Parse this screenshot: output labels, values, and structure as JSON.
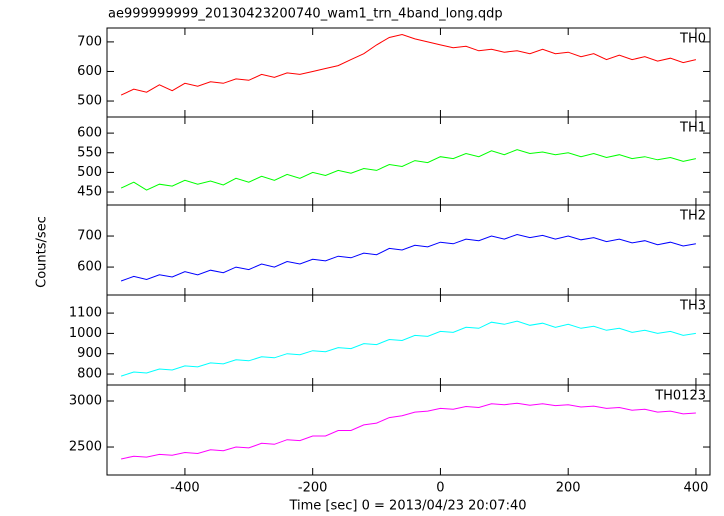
{
  "chart_data": {
    "type": "line",
    "title": "ae999999999_20130423200740_wam1_trn_4band_long.qdp",
    "x_label": "Time [sec] 0 = 2013/04/23 20:07:40",
    "y_label": "Counts/sec",
    "xlim": [
      -522,
      422
    ],
    "xticks": [
      -400,
      -200,
      0,
      200,
      400
    ],
    "x": [
      -500,
      -480,
      -460,
      -440,
      -420,
      -400,
      -380,
      -360,
      -340,
      -320,
      -300,
      -280,
      -260,
      -240,
      -220,
      -200,
      -180,
      -160,
      -140,
      -120,
      -100,
      -80,
      -60,
      -40,
      -20,
      0,
      20,
      40,
      60,
      80,
      100,
      120,
      140,
      160,
      180,
      200,
      220,
      240,
      260,
      280,
      300,
      320,
      340,
      360,
      380,
      400
    ],
    "series": [
      {
        "name": "TH0",
        "color": "#ff0000",
        "ylim": [
          446,
          747
        ],
        "yticks": [
          500,
          600,
          700
        ],
        "values": [
          520,
          540,
          530,
          555,
          535,
          560,
          550,
          565,
          560,
          575,
          570,
          590,
          580,
          595,
          590,
          600,
          610,
          620,
          640,
          660,
          690,
          715,
          725,
          710,
          700,
          690,
          680,
          685,
          670,
          675,
          665,
          670,
          660,
          675,
          660,
          665,
          650,
          660,
          640,
          655,
          640,
          650,
          635,
          645,
          630,
          640
        ]
      },
      {
        "name": "TH1",
        "color": "#00ff00",
        "ylim": [
          417,
          641
        ],
        "yticks": [
          450,
          500,
          550,
          600
        ],
        "values": [
          460,
          475,
          455,
          470,
          465,
          480,
          470,
          478,
          468,
          485,
          475,
          490,
          480,
          495,
          485,
          500,
          492,
          505,
          498,
          510,
          505,
          520,
          515,
          530,
          525,
          540,
          535,
          548,
          540,
          555,
          545,
          558,
          548,
          552,
          545,
          550,
          540,
          548,
          538,
          545,
          535,
          540,
          532,
          538,
          528,
          535
        ]
      },
      {
        "name": "TH2",
        "color": "#0000ff",
        "ylim": [
          510,
          800
        ],
        "yticks": [
          600,
          700
        ],
        "values": [
          555,
          570,
          560,
          575,
          568,
          585,
          575,
          590,
          582,
          600,
          592,
          610,
          600,
          618,
          610,
          625,
          620,
          635,
          630,
          645,
          640,
          660,
          655,
          670,
          665,
          680,
          675,
          690,
          685,
          700,
          690,
          705,
          695,
          702,
          690,
          700,
          688,
          695,
          682,
          690,
          678,
          685,
          672,
          680,
          668,
          675
        ]
      },
      {
        "name": "TH3",
        "color": "#00ffff",
        "ylim": [
          746,
          1189
        ],
        "yticks": [
          800,
          900,
          1000,
          1100
        ],
        "values": [
          790,
          810,
          805,
          825,
          820,
          840,
          835,
          855,
          850,
          870,
          865,
          885,
          880,
          900,
          895,
          915,
          910,
          930,
          925,
          950,
          945,
          970,
          965,
          990,
          985,
          1010,
          1005,
          1030,
          1025,
          1055,
          1045,
          1060,
          1040,
          1050,
          1030,
          1045,
          1025,
          1035,
          1015,
          1025,
          1005,
          1015,
          1000,
          1010,
          990,
          1000
        ]
      },
      {
        "name": "TH0123",
        "color": "#ff00ff",
        "ylim": [
          2196,
          3174
        ],
        "yticks": [
          2500,
          3000
        ],
        "values": [
          2370,
          2400,
          2390,
          2420,
          2410,
          2440,
          2430,
          2470,
          2460,
          2500,
          2490,
          2540,
          2530,
          2580,
          2570,
          2620,
          2620,
          2680,
          2680,
          2740,
          2760,
          2820,
          2840,
          2880,
          2890,
          2920,
          2910,
          2940,
          2930,
          2970,
          2960,
          2975,
          2955,
          2970,
          2950,
          2960,
          2935,
          2945,
          2920,
          2930,
          2900,
          2910,
          2880,
          2890,
          2860,
          2870
        ]
      }
    ]
  }
}
